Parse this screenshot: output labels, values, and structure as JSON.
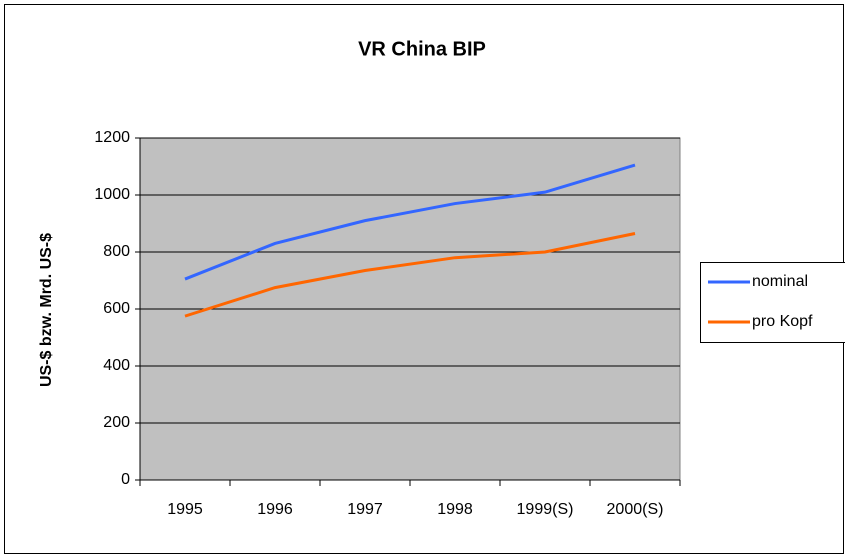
{
  "chart_data": {
    "type": "line",
    "title": "VR China BIP",
    "y_label": "US-$ bzw. Mrd. US-$",
    "categories": [
      "1995",
      "1996",
      "1997",
      "1998",
      "1999(S)",
      "2000(S)"
    ],
    "series": [
      {
        "name": "nominal",
        "color": "#3366ff",
        "values": [
          705,
          830,
          910,
          970,
          1010,
          1105
        ]
      },
      {
        "name": "pro Kopf",
        "color": "#ff6600",
        "values": [
          575,
          675,
          735,
          780,
          800,
          865
        ]
      }
    ],
    "ylim": [
      0,
      1200
    ],
    "yticks": [
      0,
      200,
      400,
      600,
      800,
      1000,
      1200
    ],
    "grid": true,
    "legend": "right"
  }
}
